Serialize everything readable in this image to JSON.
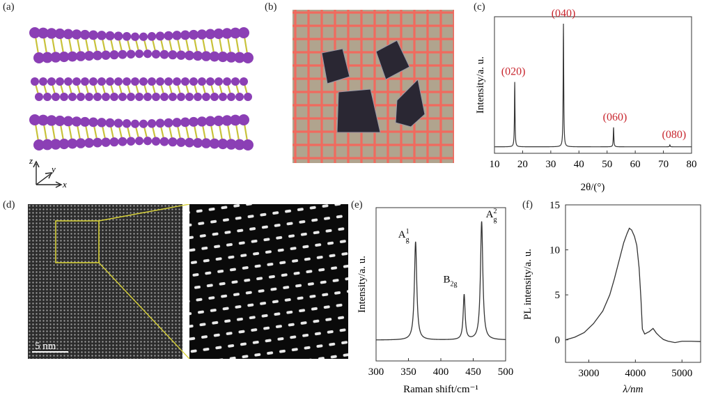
{
  "panels": {
    "a": {
      "label": "(a)",
      "axes": {
        "z": "z",
        "y": "y",
        "x": "x"
      },
      "colors": {
        "atom": "#8b3fb5",
        "bond": "#c8c23a"
      }
    },
    "b": {
      "label": "(b)",
      "colors": {
        "grid": "#f06a5e",
        "paper": "#b0a48e",
        "flake": "#2a2733"
      }
    },
    "c": {
      "label": "(c)",
      "chart_data": {
        "type": "line",
        "title": "",
        "xlabel": "2θ/(°)",
        "ylabel": "Intensity/a. u.",
        "xlim": [
          10,
          80
        ],
        "xticks": [
          10,
          20,
          30,
          40,
          50,
          60,
          70,
          80
        ],
        "baseline": 0.05,
        "peaks": [
          {
            "x": 17.2,
            "y": 0.55,
            "label": "(020)"
          },
          {
            "x": 34.5,
            "y": 1.0,
            "label": "(040)"
          },
          {
            "x": 52.3,
            "y": 0.2,
            "label": "(060)"
          },
          {
            "x": 72.3,
            "y": 0.065,
            "label": "(080)"
          }
        ],
        "annotation_color": "#c8262e",
        "line_color": "#333333"
      }
    },
    "d": {
      "label": "(d)",
      "scale_bar": "5 nm",
      "box_color": "#d8d23a"
    },
    "e": {
      "label": "(e)",
      "chart_data": {
        "type": "line",
        "title": "",
        "xlabel": "Raman shift/cm⁻¹",
        "ylabel": "Intensity/a. u.",
        "xlim": [
          300,
          500
        ],
        "xticks": [
          300,
          350,
          400,
          450,
          500
        ],
        "baseline": 0.07,
        "peaks": [
          {
            "x": 361,
            "y": 0.83,
            "width": 2.2,
            "label": "A",
            "sub": "g",
            "sup": "1"
          },
          {
            "x": 436,
            "y": 0.38,
            "width": 1.8,
            "label": "B",
            "sub": "2g",
            "sup": ""
          },
          {
            "x": 463,
            "y": 1.0,
            "width": 2.2,
            "label": "A",
            "sub": "g",
            "sup": "2"
          }
        ],
        "line_color": "#333333"
      }
    },
    "f": {
      "label": "(f)",
      "chart_data": {
        "type": "line",
        "title": "",
        "xlabel": "λ/nm",
        "ylabel": "PL intensity/a. u.",
        "xlim": [
          2500,
          5400
        ],
        "ylim": [
          -2.5,
          15
        ],
        "xticks": [
          3000,
          4000,
          5000
        ],
        "yticks": [
          0,
          5,
          10,
          15
        ],
        "x": [
          2500,
          2700,
          2900,
          3100,
          3300,
          3450,
          3550,
          3650,
          3750,
          3820,
          3870,
          3920,
          3980,
          4030,
          4080,
          4120,
          4150,
          4200,
          4300,
          4380,
          4450,
          4520,
          4600,
          4700,
          4850,
          5000,
          5200,
          5400
        ],
        "y": [
          0.0,
          0.3,
          0.8,
          1.8,
          3.2,
          5.0,
          6.8,
          8.8,
          10.8,
          11.8,
          12.4,
          12.2,
          11.5,
          10.5,
          8.0,
          4.5,
          1.2,
          0.8,
          1.0,
          1.2,
          0.6,
          0.3,
          0.1,
          0.0,
          -0.2,
          -0.2,
          -0.3,
          -0.3
        ],
        "line_color": "#333333"
      }
    }
  }
}
